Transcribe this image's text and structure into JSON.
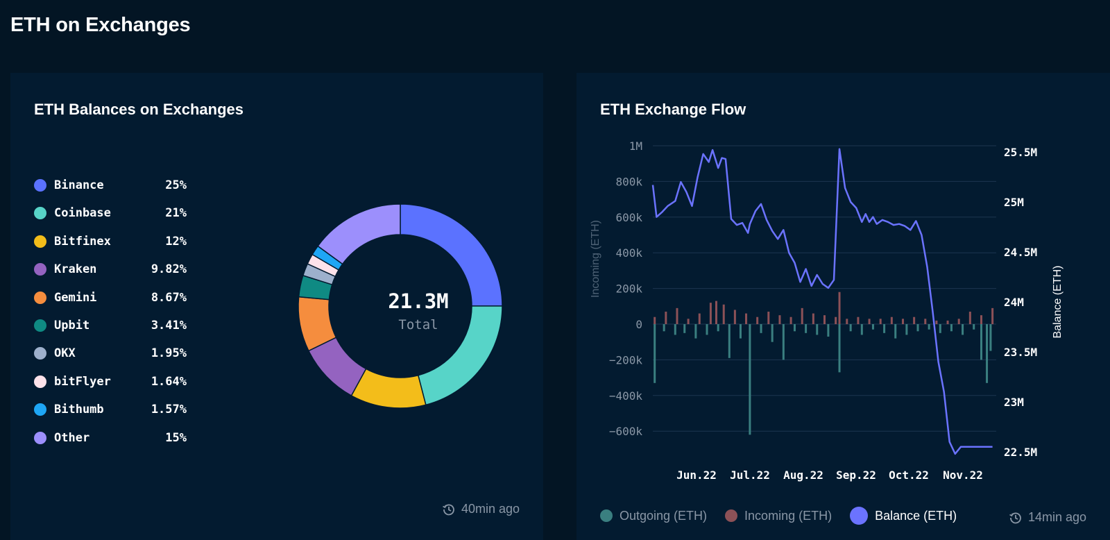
{
  "page": {
    "title": "ETH on Exchanges"
  },
  "balances_card": {
    "title": "ETH Balances on Exchanges",
    "total_value": "21.3M",
    "total_label": "Total",
    "updated": "40min ago",
    "legend": [
      {
        "name": "Binance",
        "value": "25%",
        "color": "#5b72ff"
      },
      {
        "name": "Coinbase",
        "value": "21%",
        "color": "#57d4c8"
      },
      {
        "name": "Bitfinex",
        "value": "12%",
        "color": "#f3bd1a"
      },
      {
        "name": "Kraken",
        "value": "9.82%",
        "color": "#9463c0"
      },
      {
        "name": "Gemini",
        "value": "8.67%",
        "color": "#f58d3e"
      },
      {
        "name": "Upbit",
        "value": "3.41%",
        "color": "#0f8a83"
      },
      {
        "name": "OKX",
        "value": "1.95%",
        "color": "#9db0cc"
      },
      {
        "name": "bitFlyer",
        "value": "1.64%",
        "color": "#fde2ea"
      },
      {
        "name": "Bithumb",
        "value": "1.57%",
        "color": "#1ea6f5"
      },
      {
        "name": "Other",
        "value": "15%",
        "color": "#9c8ffc"
      }
    ]
  },
  "flow_card": {
    "title": "ETH Exchange Flow",
    "updated": "14min ago",
    "legend": [
      {
        "name": "Outgoing (ETH)",
        "color": "#3a7f80"
      },
      {
        "name": "Incoming (ETH)",
        "color": "#8c5157"
      },
      {
        "name": "Balance (ETH)",
        "color": "#6b73ff"
      }
    ]
  },
  "chart_data": [
    {
      "type": "pie",
      "title": "ETH Balances on Exchanges",
      "categories": [
        "Binance",
        "Coinbase",
        "Bitfinex",
        "Kraken",
        "Gemini",
        "Upbit",
        "OKX",
        "bitFlyer",
        "Bithumb",
        "Other"
      ],
      "values": [
        25,
        21,
        12,
        9.82,
        8.67,
        3.41,
        1.95,
        1.64,
        1.57,
        15
      ],
      "colors": [
        "#5b72ff",
        "#57d4c8",
        "#f3bd1a",
        "#9463c0",
        "#f58d3e",
        "#0f8a83",
        "#9db0cc",
        "#fde2ea",
        "#1ea6f5",
        "#9c8ffc"
      ],
      "center_text": "21.3M",
      "center_label": "Total"
    },
    {
      "type": "bar+line",
      "title": "ETH Exchange Flow",
      "x_ticks": [
        "Jun.22",
        "Jul.22",
        "Aug.22",
        "Sep.22",
        "Oct.22",
        "Nov.22"
      ],
      "x_start": "2022-05-20",
      "x_end": "2022-11-20",
      "ylabel": "Incoming (ETH)",
      "ylim": [
        -750000,
        1000000
      ],
      "yticks": [
        1000000,
        800000,
        600000,
        400000,
        200000,
        0,
        -200000,
        -400000,
        -600000
      ],
      "ytick_labels": [
        "1M",
        "800k",
        "600k",
        "400k",
        "200k",
        "0",
        "−200k",
        "−400k",
        "−600k"
      ],
      "y2label": "Balance (ETH)",
      "y2lim": [
        22450000,
        25580000
      ],
      "y2ticks": [
        25500000,
        25000000,
        24500000,
        24000000,
        23500000,
        23000000,
        22500000
      ],
      "y2tick_labels": [
        "25.5M",
        "25M",
        "24.5M",
        "24M",
        "23.5M",
        "23M",
        "22.5M"
      ],
      "series": [
        {
          "name": "Balance (ETH)",
          "axis": "right",
          "color": "#6b73ff",
          "x": [
            "2022-05-20",
            "2022-05-22",
            "2022-05-25",
            "2022-05-28",
            "2022-06-01",
            "2022-06-04",
            "2022-06-07",
            "2022-06-10",
            "2022-06-13",
            "2022-06-16",
            "2022-06-19",
            "2022-06-21",
            "2022-06-24",
            "2022-06-26",
            "2022-06-28",
            "2022-07-01",
            "2022-07-04",
            "2022-07-07",
            "2022-07-10",
            "2022-07-11",
            "2022-07-14",
            "2022-07-17",
            "2022-07-20",
            "2022-07-23",
            "2022-07-26",
            "2022-07-29",
            "2022-08-01",
            "2022-08-04",
            "2022-08-07",
            "2022-08-10",
            "2022-08-13",
            "2022-08-16",
            "2022-08-19",
            "2022-08-22",
            "2022-08-25",
            "2022-08-28",
            "2022-08-31",
            "2022-09-03",
            "2022-09-06",
            "2022-09-09",
            "2022-09-11",
            "2022-09-13",
            "2022-09-15",
            "2022-09-17",
            "2022-09-20",
            "2022-09-23",
            "2022-09-26",
            "2022-09-29",
            "2022-10-02",
            "2022-10-05",
            "2022-10-08",
            "2022-10-11",
            "2022-10-14",
            "2022-10-17",
            "2022-10-20",
            "2022-10-23",
            "2022-10-26",
            "2022-10-29",
            "2022-11-01",
            "2022-11-03",
            "2022-11-05",
            "2022-11-07",
            "2022-11-09",
            "2022-11-11",
            "2022-11-13",
            "2022-11-15",
            "2022-11-17",
            "2022-11-18"
          ],
          "values": [
            25170000,
            24850000,
            24900000,
            24960000,
            25010000,
            25200000,
            25100000,
            24960000,
            25250000,
            25480000,
            25400000,
            25520000,
            25340000,
            25440000,
            25430000,
            24830000,
            24770000,
            24790000,
            24690000,
            24780000,
            24910000,
            24980000,
            24820000,
            24710000,
            24630000,
            24720000,
            24490000,
            24390000,
            24200000,
            24330000,
            24160000,
            24270000,
            24180000,
            24140000,
            24220000,
            25530000,
            25140000,
            25000000,
            24940000,
            24800000,
            24880000,
            24800000,
            24850000,
            24780000,
            24820000,
            24800000,
            24770000,
            24780000,
            24760000,
            24720000,
            24810000,
            24670000,
            24350000,
            23900000,
            23400000,
            23100000,
            22600000,
            22480000,
            22550000,
            22550000,
            22550000,
            22550000,
            22550000,
            22550000,
            22550000,
            22550000,
            22550000,
            22550000
          ]
        },
        {
          "name": "Incoming (ETH)",
          "axis": "left",
          "color": "#8c5157",
          "x": [
            "2022-05-21",
            "2022-05-27",
            "2022-06-02",
            "2022-06-08",
            "2022-06-14",
            "2022-06-20",
            "2022-06-23",
            "2022-06-27",
            "2022-07-03",
            "2022-07-09",
            "2022-07-15",
            "2022-07-21",
            "2022-07-27",
            "2022-08-02",
            "2022-08-08",
            "2022-08-14",
            "2022-08-20",
            "2022-08-26",
            "2022-08-28",
            "2022-09-01",
            "2022-09-07",
            "2022-09-13",
            "2022-09-19",
            "2022-09-25",
            "2022-10-01",
            "2022-10-07",
            "2022-10-13",
            "2022-10-19",
            "2022-10-25",
            "2022-10-31",
            "2022-11-06",
            "2022-11-12",
            "2022-11-18"
          ],
          "values": [
            40000,
            70000,
            90000,
            30000,
            60000,
            120000,
            130000,
            110000,
            80000,
            60000,
            40000,
            70000,
            50000,
            40000,
            90000,
            60000,
            50000,
            40000,
            180000,
            30000,
            40000,
            30000,
            30000,
            40000,
            30000,
            40000,
            30000,
            20000,
            20000,
            30000,
            70000,
            50000,
            90000
          ]
        },
        {
          "name": "Outgoing (ETH)",
          "axis": "left",
          "color": "#3a7f80",
          "x": [
            "2022-05-21",
            "2022-05-26",
            "2022-06-01",
            "2022-06-06",
            "2022-06-12",
            "2022-06-18",
            "2022-06-24",
            "2022-06-30",
            "2022-07-06",
            "2022-07-11",
            "2022-07-17",
            "2022-07-23",
            "2022-07-29",
            "2022-08-04",
            "2022-08-10",
            "2022-08-16",
            "2022-08-22",
            "2022-08-28",
            "2022-09-03",
            "2022-09-09",
            "2022-09-15",
            "2022-09-21",
            "2022-09-27",
            "2022-10-03",
            "2022-10-09",
            "2022-10-15",
            "2022-10-21",
            "2022-10-27",
            "2022-11-02",
            "2022-11-08",
            "2022-11-12",
            "2022-11-15",
            "2022-11-17"
          ],
          "values": [
            -330000,
            -40000,
            -60000,
            -50000,
            -80000,
            -60000,
            -40000,
            -190000,
            -80000,
            -620000,
            -50000,
            -100000,
            -200000,
            -40000,
            -50000,
            -60000,
            -70000,
            -270000,
            -40000,
            -60000,
            -30000,
            -50000,
            -80000,
            -60000,
            -40000,
            -30000,
            -50000,
            -40000,
            -60000,
            -30000,
            -200000,
            -330000,
            -150000
          ]
        }
      ]
    }
  ]
}
